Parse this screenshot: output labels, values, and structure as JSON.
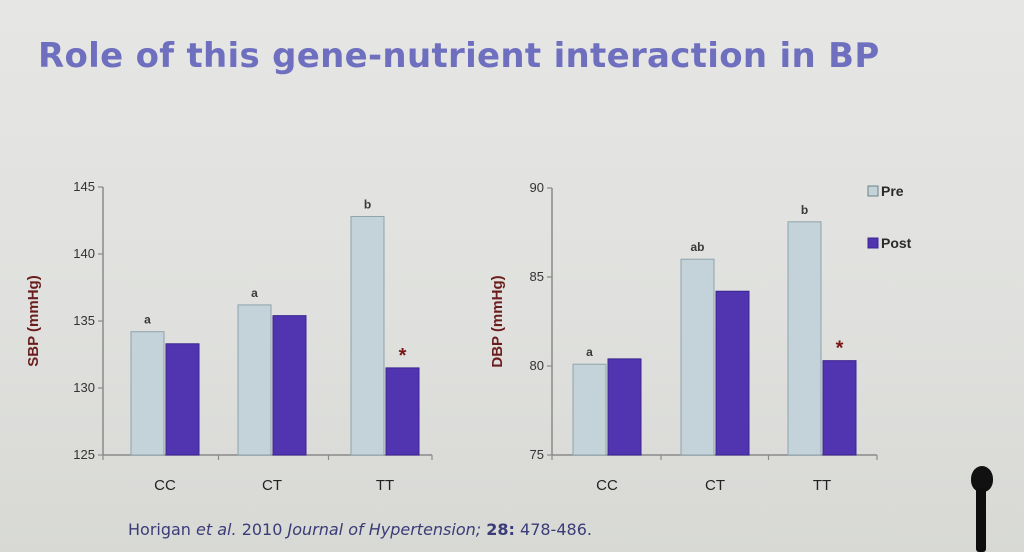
{
  "slide": {
    "title": "Role of this gene-nutrient interaction in BP"
  },
  "citation": {
    "authors": "Horigan",
    "etal": "et al.",
    "year": "2010",
    "journal": "Journal of Hypertension;",
    "volume": "28:",
    "pages": "478-486."
  },
  "colors": {
    "pre": "#c3d3d9",
    "post": "#5034b0",
    "axis": "#8a8a8a",
    "axis_label": "#6b1d1d",
    "tick_label": "#333333",
    "annotation": "#3a3a3a",
    "star": "#7a1515",
    "title": "#6f6fc0"
  },
  "chart_data": [
    {
      "type": "bar",
      "categories": [
        "CC",
        "CT",
        "TT"
      ],
      "series": [
        {
          "name": "Pre",
          "values": [
            134.2,
            136.2,
            142.8
          ]
        },
        {
          "name": "Post",
          "values": [
            133.3,
            135.4,
            131.5
          ]
        }
      ],
      "ylabel": "SBP (mmHg)",
      "ylim": [
        125,
        145
      ],
      "yticks": [
        125,
        130,
        135,
        140,
        145
      ],
      "grid": false,
      "annotations": [
        {
          "category": "CC",
          "series": "Pre",
          "text": "a"
        },
        {
          "category": "CT",
          "series": "Pre",
          "text": "a"
        },
        {
          "category": "TT",
          "series": "Pre",
          "text": "b"
        },
        {
          "category": "TT",
          "series": "Post",
          "text": "*"
        }
      ]
    },
    {
      "type": "bar",
      "categories": [
        "CC",
        "CT",
        "TT"
      ],
      "series": [
        {
          "name": "Pre",
          "values": [
            80.1,
            86.0,
            88.1
          ]
        },
        {
          "name": "Post",
          "values": [
            80.4,
            84.2,
            80.3
          ]
        }
      ],
      "ylabel": "DBP (mmHg)",
      "ylim": [
        75,
        90
      ],
      "yticks": [
        75,
        80,
        85,
        90
      ],
      "grid": false,
      "legend": {
        "position": "right",
        "entries": [
          "Pre",
          "Post"
        ]
      },
      "annotations": [
        {
          "category": "CC",
          "series": "Pre",
          "text": "a"
        },
        {
          "category": "CT",
          "series": "Pre",
          "text": "ab"
        },
        {
          "category": "TT",
          "series": "Pre",
          "text": "b"
        },
        {
          "category": "TT",
          "series": "Post",
          "text": "*"
        }
      ]
    }
  ]
}
